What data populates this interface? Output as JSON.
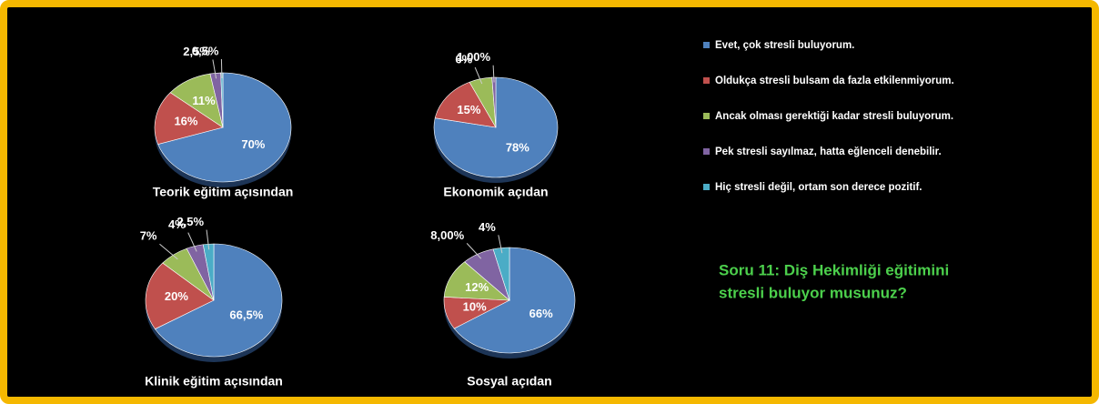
{
  "legend": {
    "categories": [
      "Evet, çok stresli buluyorum.",
      "Oldukça stresli bulsam da fazla etkilenmiyorum.",
      "Ancak olması gerektiği kadar stresli buluyorum.",
      "Pek stresli sayılmaz, hatta eğlenceli denebilir.",
      "Hiç stresli değil, ortam son derece pozitif."
    ],
    "colors": [
      "#4f81bd",
      "#c0504d",
      "#9bbb59",
      "#8064a2",
      "#4bacc6"
    ]
  },
  "question": [
    "Soru 11: Diş Hekimliği eğitimini",
    "stresli buluyor musunuz?"
  ],
  "chart_data": [
    {
      "type": "pie",
      "title": "Teorik eğitim açısından",
      "values": [
        70,
        16,
        11,
        2.5,
        0.5
      ],
      "value_labels": [
        "70%",
        "16%",
        "11%",
        "2,5%",
        "0,5%"
      ]
    },
    {
      "type": "pie",
      "title": "Ekonomik açıdan",
      "values": [
        78,
        15,
        6,
        1
      ],
      "value_labels": [
        "78%",
        "15%",
        "6%",
        "1,00%"
      ]
    },
    {
      "type": "pie",
      "title": "Klinik eğitim açısından",
      "values": [
        66.5,
        20,
        7,
        4,
        2.5
      ],
      "value_labels": [
        "66,5%",
        "20%",
        "7%",
        "4%",
        "2,5%"
      ]
    },
    {
      "type": "pie",
      "title": "Sosyal açıdan",
      "values": [
        66,
        10,
        12,
        8,
        4
      ],
      "value_labels": [
        "66%",
        "10%",
        "12%",
        "8,00%",
        "4%"
      ]
    }
  ]
}
